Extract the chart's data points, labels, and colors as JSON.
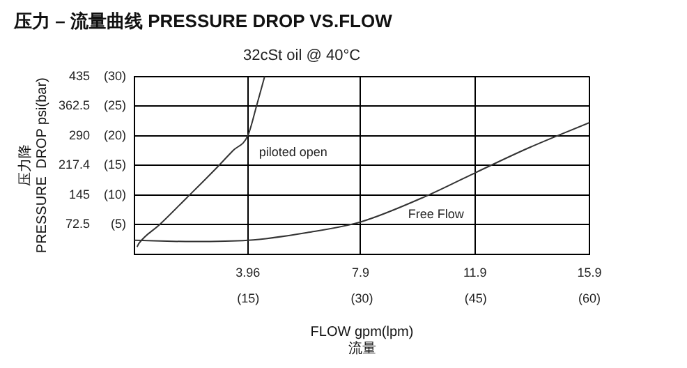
{
  "chart_data": {
    "type": "line",
    "title": "压力 – 流量曲线 PRESSURE DROP VS.FLOW",
    "subtitle": "32cSt oil @ 40°C",
    "xlabel": "FLOW gpm(lpm)\n流量",
    "ylabel": "压力降\nPRESSURE  DROP psi(bar)",
    "xlim": [
      0,
      15.9
    ],
    "ylim": [
      0,
      435
    ],
    "xticks": [
      3.96,
      7.9,
      11.9,
      15.9
    ],
    "x2lim": [
      0,
      60
    ],
    "x2ticks": [
      {
        "value": 15,
        "label": "(15)"
      },
      {
        "value": 30,
        "label": "(30)"
      },
      {
        "value": 45,
        "label": "(45)"
      },
      {
        "value": 60,
        "label": "(60)"
      }
    ],
    "yticks": [
      72.5,
      145,
      217.4,
      290,
      362.5,
      435
    ],
    "y2lim": [
      0,
      30
    ],
    "y2ticks": [
      {
        "value": 5,
        "label": "(5)"
      },
      {
        "value": 10,
        "label": "(10)"
      },
      {
        "value": 15,
        "label": "(15)"
      },
      {
        "value": 20,
        "label": "(20)"
      },
      {
        "value": 25,
        "label": "(25)"
      },
      {
        "value": 30,
        "label": "(30)"
      }
    ],
    "grid": true,
    "legend": false,
    "marker": "none",
    "line_style": "solid",
    "series": [
      {
        "name": "piloted open",
        "color": "#333333",
        "x": [
          0.09,
          0.16,
          0.87,
          1.81,
          2.74,
          3.45,
          3.96,
          4.27,
          4.55
        ],
        "values": [
          18,
          27,
          72,
          137,
          202,
          254,
          290,
          364,
          435
        ]
      },
      {
        "name": "Free Flow",
        "color": "#333333",
        "x": [
          0,
          2.04,
          3.96,
          6.03,
          7.9,
          10.25,
          11.9,
          13.77,
          15.9
        ],
        "values": [
          34,
          31,
          34,
          53,
          79,
          144,
          199,
          260,
          322
        ]
      }
    ]
  }
}
